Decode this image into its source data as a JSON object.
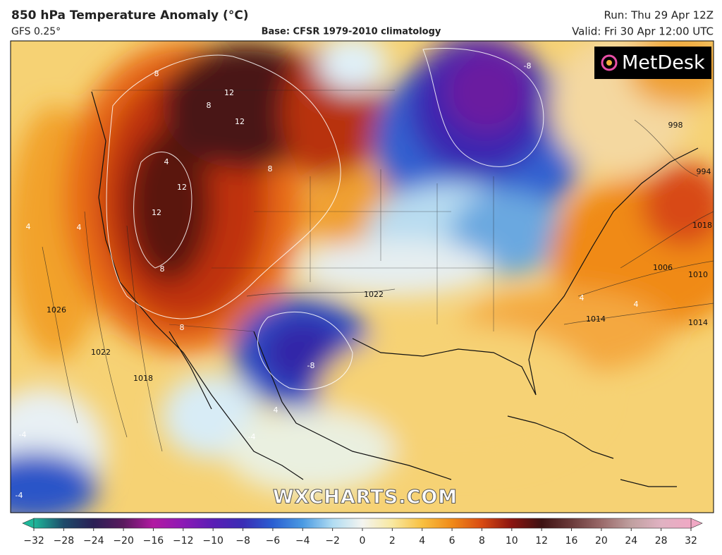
{
  "header": {
    "title": "850 hPa Temperature Anomaly (°C)",
    "model": "GFS 0.25°",
    "base": "Base: CFSR 1979-2010 climatology",
    "run": "Run: Thu 29 Apr 12Z",
    "valid": "Valid: Fri 30 Apr 12:00 UTC"
  },
  "map": {
    "logo": "MetDesk",
    "watermark": "WXCHARTS.COM",
    "contour_labels": [
      12,
      12,
      12,
      12,
      8,
      8,
      8,
      8,
      4,
      4,
      4,
      -8,
      -8,
      4,
      4,
      -4,
      -4,
      -4,
      1026,
      1022,
      1018,
      1022,
      1014,
      1006,
      1010,
      1014,
      1018,
      998,
      994,
      8,
      4
    ]
  },
  "colorbar": {
    "ticks": [
      {
        "value": -32,
        "label": "−32"
      },
      {
        "value": -28,
        "label": "−28"
      },
      {
        "value": -24,
        "label": "−24"
      },
      {
        "value": -20,
        "label": "−20"
      },
      {
        "value": -16,
        "label": "−16"
      },
      {
        "value": -12,
        "label": "−12"
      },
      {
        "value": -10,
        "label": "−10"
      },
      {
        "value": -8,
        "label": "−8"
      },
      {
        "value": -6,
        "label": "−6"
      },
      {
        "value": -4,
        "label": "−4"
      },
      {
        "value": -2,
        "label": "−2"
      },
      0,
      2,
      4,
      6,
      8,
      10,
      12,
      16,
      20,
      24,
      28,
      32
    ],
    "colors": [
      "#1fb89a",
      "#1d4a6a",
      "#2a1f55",
      "#5a1a5e",
      "#b21aa2",
      "#8c1ab5",
      "#5a1eb5",
      "#3a2db5",
      "#2a5fd2",
      "#4a9ae2",
      "#b0dcf2",
      "#f4f4f0",
      "#f8e8a0",
      "#f8c040",
      "#f08a18",
      "#d84a12",
      "#8a1410",
      "#3e1212",
      "#6a3a3a",
      "#9a6a6a",
      "#c0a0a0",
      "#e0b2c2",
      "#f0a8c4"
    ]
  }
}
